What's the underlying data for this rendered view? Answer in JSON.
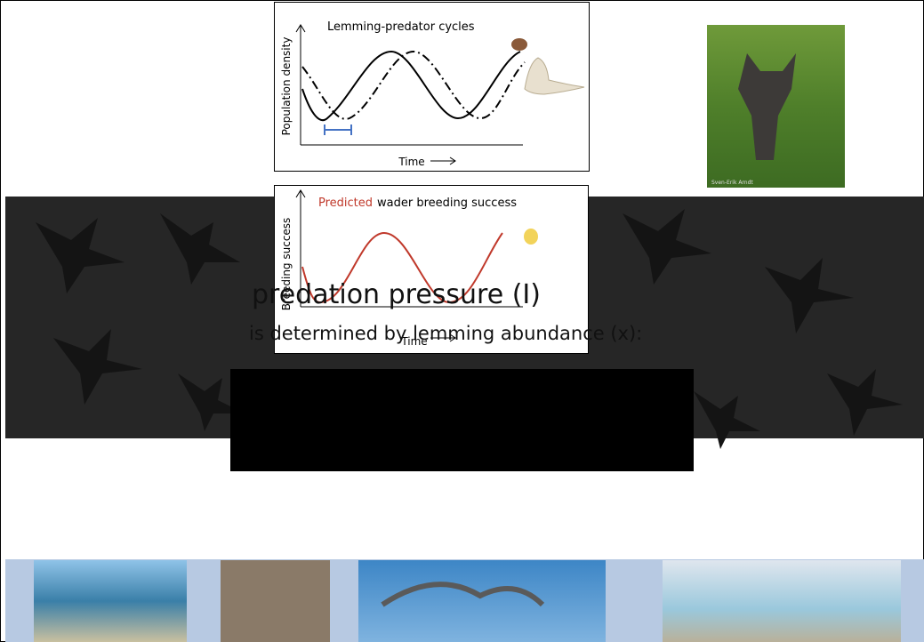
{
  "top_chart": {
    "title": "Lemming-predator cycles",
    "y_label": "Population density",
    "x_label": "Time"
  },
  "bottom_chart": {
    "title_highlight": "Predicted",
    "title_rest": "wader breeding success",
    "y_label": "Breeding success",
    "x_label": "Time"
  },
  "photo_credit": "Sven-Erik Arndt",
  "heading": "predation pressure (I)",
  "subheading": "is determined by lemming abundance (x):"
}
